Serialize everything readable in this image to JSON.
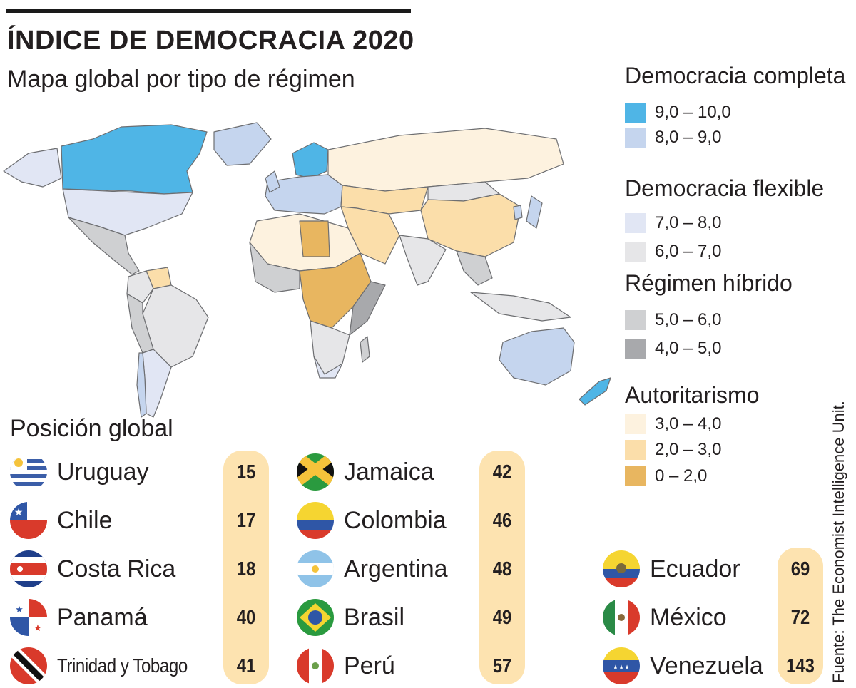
{
  "title": "ÍNDICE DE DEMOCRACIA 2020",
  "subtitle": "Mapa global por tipo de régimen",
  "legend": {
    "groups": [
      {
        "heading": "Democracia completa",
        "items": [
          {
            "label": "9,0 – 10,0",
            "color": "#4fb5e6"
          },
          {
            "label": "8,0 – 9,0",
            "color": "#c5d5ee"
          }
        ]
      },
      {
        "heading": "Democracia flexible",
        "items": [
          {
            "label": "7,0 – 8,0",
            "color": "#e1e6f4"
          },
          {
            "label": "6,0 – 7,0",
            "color": "#e6e6e8"
          }
        ]
      },
      {
        "heading": "Régimen híbrido",
        "items": [
          {
            "label": "5,0 – 6,0",
            "color": "#cfd0d2"
          },
          {
            "label": "4,0 – 5,0",
            "color": "#a8a9ac"
          }
        ]
      },
      {
        "heading": "Autoritarismo",
        "items": [
          {
            "label": "3,0 – 4,0",
            "color": "#fdf2df"
          },
          {
            "label": "2,0 – 3,0",
            "color": "#fbdeaa"
          },
          {
            "label": "0 – 2,0",
            "color": "#e8b660"
          }
        ]
      }
    ]
  },
  "ranking": {
    "title": "Posición global",
    "col1": [
      {
        "name": "Uruguay",
        "rank": "15",
        "flag": "uruguay-flag"
      },
      {
        "name": "Chile",
        "rank": "17",
        "flag": "chile-flag"
      },
      {
        "name": "Costa Rica",
        "rank": "18",
        "flag": "costa-rica-flag"
      },
      {
        "name": "Panamá",
        "rank": "40",
        "flag": "panama-flag"
      },
      {
        "name": "Trinidad y Tobago",
        "rank": "41",
        "flag": "trinidad-flag"
      }
    ],
    "col2": [
      {
        "name": "Jamaica",
        "rank": "42",
        "flag": "jamaica-flag"
      },
      {
        "name": "Colombia",
        "rank": "46",
        "flag": "colombia-flag"
      },
      {
        "name": "Argentina",
        "rank": "48",
        "flag": "argentina-flag"
      },
      {
        "name": "Brasil",
        "rank": "49",
        "flag": "brazil-flag"
      },
      {
        "name": "Perú",
        "rank": "57",
        "flag": "peru-flag"
      }
    ],
    "col3": [
      {
        "name": "Ecuador",
        "rank": "69",
        "flag": "ecuador-flag"
      },
      {
        "name": "México",
        "rank": "72",
        "flag": "mexico-flag"
      },
      {
        "name": "Venezuela",
        "rank": "143",
        "flag": "venezuela-flag"
      }
    ]
  },
  "source": "Fuente: The Economist Intelligence Unit."
}
